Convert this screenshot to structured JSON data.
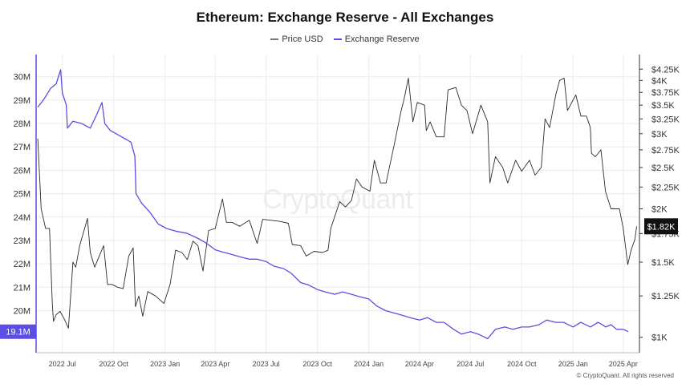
{
  "chart_data": {
    "type": "line",
    "title": "Ethereum: Exchange Reserve - All Exchanges",
    "legend": {
      "placement": "top-center"
    },
    "grid": true,
    "series": [
      {
        "name": "Price USD",
        "axis": "right",
        "color": "#2b2b2b",
        "points": [
          [
            "2022-05-18",
            2920
          ],
          [
            "2022-05-24",
            2000
          ],
          [
            "2022-06-01",
            1800
          ],
          [
            "2022-06-08",
            1800
          ],
          [
            "2022-06-13",
            1200
          ],
          [
            "2022-06-15",
            1090
          ],
          [
            "2022-06-20",
            1130
          ],
          [
            "2022-06-27",
            1150
          ],
          [
            "2022-07-05",
            1100
          ],
          [
            "2022-07-12",
            1050
          ],
          [
            "2022-07-20",
            1500
          ],
          [
            "2022-07-25",
            1460
          ],
          [
            "2022-08-01",
            1640
          ],
          [
            "2022-08-10",
            1800
          ],
          [
            "2022-08-15",
            1900
          ],
          [
            "2022-08-20",
            1580
          ],
          [
            "2022-08-28",
            1460
          ],
          [
            "2022-09-06",
            1560
          ],
          [
            "2022-09-13",
            1640
          ],
          [
            "2022-09-20",
            1330
          ],
          [
            "2022-09-28",
            1330
          ],
          [
            "2022-10-08",
            1310
          ],
          [
            "2022-10-18",
            1300
          ],
          [
            "2022-10-28",
            1550
          ],
          [
            "2022-11-05",
            1620
          ],
          [
            "2022-11-09",
            1180
          ],
          [
            "2022-11-15",
            1250
          ],
          [
            "2022-11-22",
            1120
          ],
          [
            "2022-12-01",
            1280
          ],
          [
            "2022-12-15",
            1250
          ],
          [
            "2022-12-30",
            1200
          ],
          [
            "2023-01-10",
            1330
          ],
          [
            "2023-01-20",
            1600
          ],
          [
            "2023-01-31",
            1580
          ],
          [
            "2023-02-10",
            1520
          ],
          [
            "2023-02-20",
            1680
          ],
          [
            "2023-03-01",
            1640
          ],
          [
            "2023-03-10",
            1430
          ],
          [
            "2023-03-20",
            1780
          ],
          [
            "2023-04-01",
            1800
          ],
          [
            "2023-04-14",
            2110
          ],
          [
            "2023-04-21",
            1860
          ],
          [
            "2023-05-01",
            1860
          ],
          [
            "2023-05-15",
            1820
          ],
          [
            "2023-06-01",
            1880
          ],
          [
            "2023-06-15",
            1660
          ],
          [
            "2023-06-25",
            1890
          ],
          [
            "2023-07-10",
            1880
          ],
          [
            "2023-07-25",
            1870
          ],
          [
            "2023-08-10",
            1850
          ],
          [
            "2023-08-17",
            1650
          ],
          [
            "2023-09-01",
            1640
          ],
          [
            "2023-09-11",
            1550
          ],
          [
            "2023-09-25",
            1590
          ],
          [
            "2023-10-10",
            1580
          ],
          [
            "2023-10-20",
            1600
          ],
          [
            "2023-10-25",
            1800
          ],
          [
            "2023-11-10",
            2080
          ],
          [
            "2023-11-20",
            2020
          ],
          [
            "2023-12-01",
            2090
          ],
          [
            "2023-12-10",
            2350
          ],
          [
            "2023-12-20",
            2250
          ],
          [
            "2024-01-03",
            2200
          ],
          [
            "2024-01-11",
            2600
          ],
          [
            "2024-01-22",
            2300
          ],
          [
            "2024-02-01",
            2300
          ],
          [
            "2024-02-15",
            2800
          ],
          [
            "2024-02-28",
            3400
          ],
          [
            "2024-03-04",
            3600
          ],
          [
            "2024-03-12",
            4050
          ],
          [
            "2024-03-20",
            3200
          ],
          [
            "2024-03-28",
            3550
          ],
          [
            "2024-04-10",
            3500
          ],
          [
            "2024-04-13",
            3050
          ],
          [
            "2024-04-20",
            3200
          ],
          [
            "2024-05-01",
            2950
          ],
          [
            "2024-05-15",
            2950
          ],
          [
            "2024-05-22",
            3800
          ],
          [
            "2024-06-05",
            3850
          ],
          [
            "2024-06-15",
            3500
          ],
          [
            "2024-06-25",
            3400
          ],
          [
            "2024-07-05",
            3000
          ],
          [
            "2024-07-20",
            3500
          ],
          [
            "2024-08-01",
            3200
          ],
          [
            "2024-08-05",
            2300
          ],
          [
            "2024-08-15",
            2650
          ],
          [
            "2024-08-28",
            2500
          ],
          [
            "2024-09-06",
            2300
          ],
          [
            "2024-09-20",
            2600
          ],
          [
            "2024-10-01",
            2450
          ],
          [
            "2024-10-15",
            2600
          ],
          [
            "2024-10-25",
            2400
          ],
          [
            "2024-11-05",
            2500
          ],
          [
            "2024-11-12",
            3250
          ],
          [
            "2024-11-20",
            3100
          ],
          [
            "2024-12-01",
            3700
          ],
          [
            "2024-12-08",
            4000
          ],
          [
            "2024-12-16",
            4050
          ],
          [
            "2024-12-22",
            3400
          ],
          [
            "2025-01-06",
            3700
          ],
          [
            "2025-01-15",
            3300
          ],
          [
            "2025-01-25",
            3300
          ],
          [
            "2025-02-01",
            3100
          ],
          [
            "2025-02-03",
            2700
          ],
          [
            "2025-02-10",
            2650
          ],
          [
            "2025-02-20",
            2750
          ],
          [
            "2025-02-28",
            2200
          ],
          [
            "2025-03-10",
            2000
          ],
          [
            "2025-03-25",
            2000
          ],
          [
            "2025-04-01",
            1800
          ],
          [
            "2025-04-09",
            1480
          ],
          [
            "2025-04-15",
            1600
          ],
          [
            "2025-04-22",
            1700
          ],
          [
            "2025-04-25",
            1820
          ]
        ]
      },
      {
        "name": "Exchange Reserve",
        "axis": "left",
        "color": "#5b4ee6",
        "points": [
          [
            "2022-05-18",
            28.7
          ],
          [
            "2022-05-28",
            29.0
          ],
          [
            "2022-06-10",
            29.5
          ],
          [
            "2022-06-20",
            29.7
          ],
          [
            "2022-06-28",
            30.3
          ],
          [
            "2022-07-01",
            29.3
          ],
          [
            "2022-07-08",
            28.8
          ],
          [
            "2022-07-10",
            27.8
          ],
          [
            "2022-07-20",
            28.1
          ],
          [
            "2022-08-05",
            28.0
          ],
          [
            "2022-08-20",
            27.8
          ],
          [
            "2022-09-01",
            28.4
          ],
          [
            "2022-09-10",
            28.9
          ],
          [
            "2022-09-15",
            28.0
          ],
          [
            "2022-09-25",
            27.7
          ],
          [
            "2022-10-10",
            27.5
          ],
          [
            "2022-10-25",
            27.3
          ],
          [
            "2022-11-01",
            27.2
          ],
          [
            "2022-11-08",
            26.6
          ],
          [
            "2022-11-10",
            25.0
          ],
          [
            "2022-11-20",
            24.6
          ],
          [
            "2022-12-05",
            24.2
          ],
          [
            "2022-12-20",
            23.7
          ],
          [
            "2023-01-05",
            23.5
          ],
          [
            "2023-01-20",
            23.4
          ],
          [
            "2023-02-10",
            23.3
          ],
          [
            "2023-02-28",
            23.1
          ],
          [
            "2023-03-15",
            22.9
          ],
          [
            "2023-04-01",
            22.6
          ],
          [
            "2023-04-15",
            22.5
          ],
          [
            "2023-05-01",
            22.4
          ],
          [
            "2023-05-15",
            22.3
          ],
          [
            "2023-06-01",
            22.2
          ],
          [
            "2023-06-15",
            22.2
          ],
          [
            "2023-07-01",
            22.1
          ],
          [
            "2023-07-15",
            21.9
          ],
          [
            "2023-08-01",
            21.8
          ],
          [
            "2023-08-15",
            21.6
          ],
          [
            "2023-09-01",
            21.2
          ],
          [
            "2023-09-15",
            21.1
          ],
          [
            "2023-10-01",
            20.9
          ],
          [
            "2023-10-15",
            20.8
          ],
          [
            "2023-11-01",
            20.7
          ],
          [
            "2023-11-15",
            20.8
          ],
          [
            "2023-12-01",
            20.7
          ],
          [
            "2023-12-15",
            20.6
          ],
          [
            "2024-01-01",
            20.5
          ],
          [
            "2024-01-15",
            20.2
          ],
          [
            "2024-01-31",
            20.0
          ],
          [
            "2024-02-15",
            19.9
          ],
          [
            "2024-03-01",
            19.8
          ],
          [
            "2024-03-15",
            19.7
          ],
          [
            "2024-04-01",
            19.6
          ],
          [
            "2024-04-15",
            19.7
          ],
          [
            "2024-05-01",
            19.5
          ],
          [
            "2024-05-15",
            19.5
          ],
          [
            "2024-06-01",
            19.2
          ],
          [
            "2024-06-15",
            19.0
          ],
          [
            "2024-07-01",
            19.1
          ],
          [
            "2024-07-15",
            19.0
          ],
          [
            "2024-08-01",
            18.8
          ],
          [
            "2024-08-15",
            19.2
          ],
          [
            "2024-09-01",
            19.3
          ],
          [
            "2024-09-15",
            19.2
          ],
          [
            "2024-10-01",
            19.3
          ],
          [
            "2024-10-15",
            19.3
          ],
          [
            "2024-11-01",
            19.4
          ],
          [
            "2024-11-15",
            19.6
          ],
          [
            "2024-12-01",
            19.5
          ],
          [
            "2024-12-15",
            19.5
          ],
          [
            "2025-01-01",
            19.3
          ],
          [
            "2025-01-15",
            19.5
          ],
          [
            "2025-02-01",
            19.3
          ],
          [
            "2025-02-15",
            19.5
          ],
          [
            "2025-03-01",
            19.3
          ],
          [
            "2025-03-10",
            19.4
          ],
          [
            "2025-03-20",
            19.2
          ],
          [
            "2025-04-01",
            19.2
          ],
          [
            "2025-04-10",
            19.1
          ]
        ]
      }
    ],
    "x_axis": {
      "range": [
        "2022-05-15",
        "2025-04-30"
      ],
      "ticks": [
        {
          "date": "2022-07-01",
          "label": "2022 Jul"
        },
        {
          "date": "2022-10-01",
          "label": "2022 Oct"
        },
        {
          "date": "2023-01-01",
          "label": "2023 Jan"
        },
        {
          "date": "2023-04-01",
          "label": "2023 Apr"
        },
        {
          "date": "2023-07-01",
          "label": "2023 Jul"
        },
        {
          "date": "2023-10-01",
          "label": "2023 Oct"
        },
        {
          "date": "2024-01-01",
          "label": "2024 Jan"
        },
        {
          "date": "2024-04-01",
          "label": "2024 Apr"
        },
        {
          "date": "2024-07-01",
          "label": "2024 Jul"
        },
        {
          "date": "2024-10-01",
          "label": "2024 Oct"
        },
        {
          "date": "2025-01-01",
          "label": "2025 Jan"
        },
        {
          "date": "2025-04-01",
          "label": "2025 Apr"
        }
      ]
    },
    "y_left": {
      "range_millions": [
        18.2,
        30.95
      ],
      "ticks": [
        {
          "value": 20,
          "label": "20M"
        },
        {
          "value": 21,
          "label": "21M"
        },
        {
          "value": 22,
          "label": "22M"
        },
        {
          "value": 23,
          "label": "23M"
        },
        {
          "value": 24,
          "label": "24M"
        },
        {
          "value": 25,
          "label": "25M"
        },
        {
          "value": 26,
          "label": "26M"
        },
        {
          "value": 27,
          "label": "27M"
        },
        {
          "value": 28,
          "label": "28M"
        },
        {
          "value": 29,
          "label": "29M"
        },
        {
          "value": 30,
          "label": "30M"
        }
      ],
      "current": {
        "value": 19.1,
        "label": "19.1M"
      }
    },
    "y_right": {
      "scale": "log",
      "range_usd": [
        920,
        4600
      ],
      "ticks": [
        {
          "value": 1000,
          "label": "$1K"
        },
        {
          "value": 1250,
          "label": "$1.25K"
        },
        {
          "value": 1500,
          "label": "$1.5K"
        },
        {
          "value": 1750,
          "label": "$1.75K"
        },
        {
          "value": 2000,
          "label": "$2K"
        },
        {
          "value": 2250,
          "label": "$2.25K"
        },
        {
          "value": 2500,
          "label": "$2.5K"
        },
        {
          "value": 2750,
          "label": "$2.75K"
        },
        {
          "value": 3000,
          "label": "$3K"
        },
        {
          "value": 3250,
          "label": "$3.25K"
        },
        {
          "value": 3500,
          "label": "$3.5K"
        },
        {
          "value": 3750,
          "label": "$3.75K"
        },
        {
          "value": 4000,
          "label": "$4K"
        },
        {
          "value": 4250,
          "label": "$4.25K"
        }
      ],
      "current": {
        "value": 1820,
        "label": "$1.82K"
      }
    }
  },
  "watermark": "CryptoQuant",
  "copyright": "© CryptoQuant. All rights reserved",
  "colors": {
    "price": "#2b2b2b",
    "reserve": "#5b4ee6",
    "grid": "#ececec",
    "current_price_bg": "#111111"
  }
}
